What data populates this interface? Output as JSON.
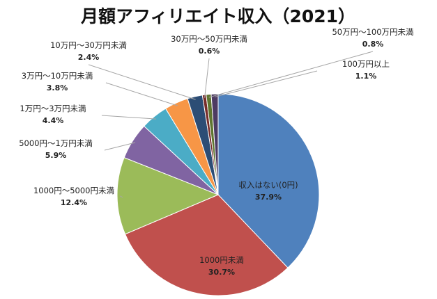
{
  "chart_data": {
    "type": "pie",
    "title": "月額アフィリエイト収入（2021）",
    "start_angle_deg": 0,
    "direction": "clockwise",
    "slices": [
      {
        "label": "収入はない(0円)",
        "value": 37.9,
        "value_label": "37.9%",
        "color": "#4f81bd"
      },
      {
        "label": "1000円未満",
        "value": 30.7,
        "value_label": "30.7%",
        "color": "#c0504d"
      },
      {
        "label": "1000円〜5000円未満",
        "value": 12.4,
        "value_label": "12.4%",
        "color": "#9bbb59"
      },
      {
        "label": "5000円〜1万円未満",
        "value": 5.9,
        "value_label": "5.9%",
        "color": "#8064a2"
      },
      {
        "label": "1万円〜3万円未満",
        "value": 4.4,
        "value_label": "4.4%",
        "color": "#4bacc6"
      },
      {
        "label": "3万円〜10万円未満",
        "value": 3.8,
        "value_label": "3.8%",
        "color": "#f79646"
      },
      {
        "label": "10万円〜30万円未満",
        "value": 2.4,
        "value_label": "2.4%",
        "color": "#2c4d75"
      },
      {
        "label": "30万円〜50万円未満",
        "value": 0.6,
        "value_label": "0.6%",
        "color": "#772c2a"
      },
      {
        "label": "50万円〜100万円未満",
        "value": 0.8,
        "value_label": "0.8%",
        "color": "#5f7530"
      },
      {
        "label": "100万円以上",
        "value": 1.1,
        "value_label": "1.1%",
        "color": "#4d3b62"
      }
    ]
  }
}
